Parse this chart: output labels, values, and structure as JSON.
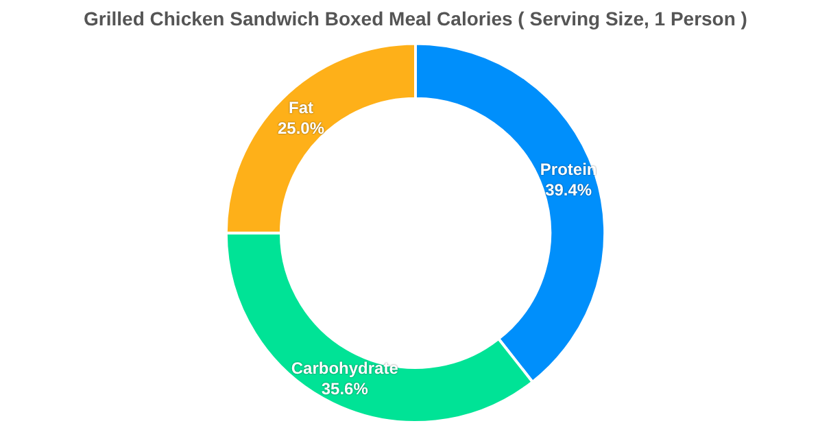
{
  "chart_data": {
    "type": "donut",
    "title": "Grilled Chicken Sandwich Boxed Meal Calories ( Serving Size, 1 Person )",
    "categories": [
      "Protein",
      "Carbohydrate",
      "Fat"
    ],
    "values": [
      39.4,
      35.6,
      25.0
    ],
    "colors": [
      "#008ffb",
      "#00e396",
      "#feb019"
    ],
    "value_labels": [
      "39.4%",
      "35.6%",
      "25.0%"
    ],
    "legend": false
  }
}
